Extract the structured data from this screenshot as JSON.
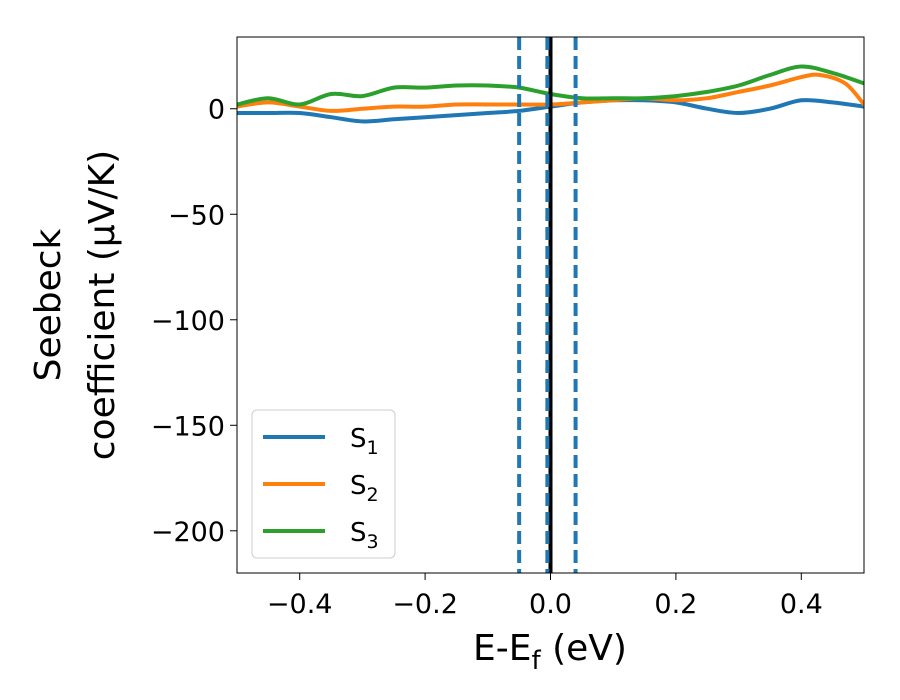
{
  "chart_data": {
    "type": "line",
    "xlabel": {
      "main": "E-E",
      "sub": "f",
      "unit": " (eV)"
    },
    "ylabel": {
      "line1": "Seebeck",
      "line2": "coefficient  (μV/K)"
    },
    "xlim": [
      -0.5,
      0.5
    ],
    "ylim": [
      -220,
      34
    ],
    "xticks": [
      -0.4,
      -0.2,
      0.0,
      0.2,
      0.4
    ],
    "xtick_labels": [
      "−0.4",
      "−0.2",
      "0.0",
      "0.2",
      "0.4"
    ],
    "yticks": [
      0,
      -50,
      -100,
      -150,
      -200
    ],
    "ytick_labels": [
      "0",
      "−50",
      "−100",
      "−150",
      "−200"
    ],
    "grid": false,
    "legend_position": "lower-left",
    "series": [
      {
        "name": "S",
        "sub": "1",
        "color": "#1f77b4",
        "x": [
          -0.5,
          -0.45,
          -0.4,
          -0.35,
          -0.3,
          -0.25,
          -0.2,
          -0.15,
          -0.1,
          -0.05,
          0.0,
          0.05,
          0.1,
          0.15,
          0.2,
          0.25,
          0.3,
          0.35,
          0.4,
          0.45,
          0.5
        ],
        "y": [
          -2,
          -2,
          -2,
          -4,
          -6,
          -5,
          -4,
          -3,
          -2,
          -1,
          1,
          3,
          4,
          4,
          3,
          0,
          -2,
          0,
          4,
          3,
          1
        ]
      },
      {
        "name": "S",
        "sub": "2",
        "color": "#ff7f0e",
        "x": [
          -0.5,
          -0.45,
          -0.4,
          -0.35,
          -0.3,
          -0.25,
          -0.2,
          -0.15,
          -0.1,
          -0.05,
          0.0,
          0.05,
          0.1,
          0.15,
          0.2,
          0.25,
          0.3,
          0.35,
          0.4,
          0.43,
          0.47,
          0.5
        ],
        "y": [
          1,
          3,
          1,
          -1,
          0,
          1,
          1,
          2,
          2,
          2,
          2,
          3,
          4,
          5,
          4,
          5,
          8,
          11,
          15,
          16,
          12,
          2
        ]
      },
      {
        "name": "S",
        "sub": "3",
        "color": "#2ca02c",
        "x": [
          -0.5,
          -0.45,
          -0.4,
          -0.35,
          -0.3,
          -0.25,
          -0.2,
          -0.15,
          -0.1,
          -0.05,
          0.0,
          0.05,
          0.1,
          0.15,
          0.2,
          0.25,
          0.3,
          0.35,
          0.4,
          0.45,
          0.5
        ],
        "y": [
          2,
          5,
          2,
          7,
          6,
          10,
          10,
          11,
          11,
          10,
          7,
          5,
          5,
          5,
          6,
          8,
          11,
          16,
          20,
          17,
          12
        ]
      }
    ],
    "vlines": [
      {
        "x": 0.0,
        "style": "solid",
        "color": "#000000"
      },
      {
        "x": -0.005,
        "style": "dashed",
        "color": "#1f77b4"
      },
      {
        "x": -0.05,
        "style": "dashed",
        "color": "#1f77b4"
      },
      {
        "x": 0.04,
        "style": "dashed",
        "color": "#1f77b4"
      }
    ]
  }
}
